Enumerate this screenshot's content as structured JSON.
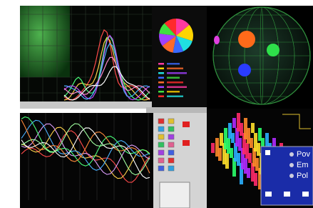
{
  "dialog": {
    "options": [
      "Pov",
      "Em",
      "Pol"
    ]
  }
}
